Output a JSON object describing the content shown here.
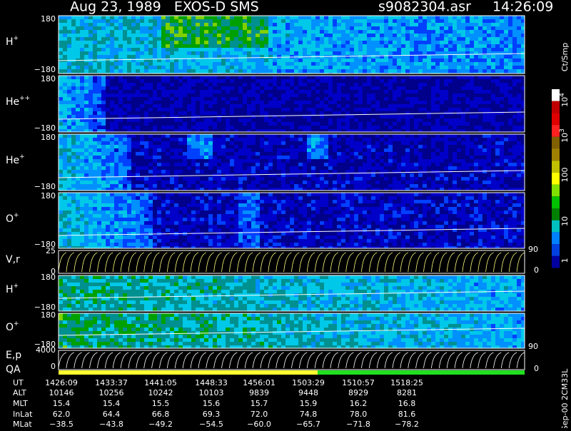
{
  "header": {
    "title": "Aug 23, 1989   EXOS-D SMS",
    "file": "s9082304.asr",
    "time": "14:26:09"
  },
  "panels": [
    {
      "label": "H",
      "sup": "+",
      "top": "180",
      "bottom": "−180"
    },
    {
      "label": "He",
      "sup": "++",
      "top": "180",
      "bottom": "−180"
    },
    {
      "label": "He",
      "sup": "+",
      "top": "180",
      "bottom": "−180"
    },
    {
      "label": "O",
      "sup": "+",
      "top": "180",
      "bottom": "−180"
    }
  ],
  "v_panel": {
    "label": "V,r",
    "top": "25",
    "bottom": "0",
    "right_top": "90",
    "right_bottom": "0"
  },
  "lower_panels": [
    {
      "label": "H",
      "sup": "+",
      "top": "180",
      "bottom": "−180"
    },
    {
      "label": "O",
      "sup": "+",
      "top": "180",
      "bottom": "−180"
    }
  ],
  "ep_panel": {
    "label": "E,p",
    "label2": "QA",
    "top": "4000",
    "bottom": "0",
    "right_top": "90",
    "right_bottom": "0"
  },
  "colorbar": {
    "unit": "Ct/Smp",
    "labels": [
      {
        "base": "10",
        "exp": "4"
      },
      {
        "base": "10",
        "exp": "3"
      },
      {
        "base": "100"
      },
      {
        "base": "10"
      },
      {
        "base": "1"
      }
    ]
  },
  "table": {
    "row_labels": [
      "UT",
      "ALT",
      "MLT",
      "InLat",
      "MLat"
    ],
    "rows": [
      [
        "1426:09",
        "1433:37",
        "1441:05",
        "1448:33",
        "1456:01",
        "1503:29",
        "1510:57",
        "1518:25"
      ],
      [
        "10146",
        "10256",
        "10242",
        "10103",
        "9839",
        "9448",
        "8929",
        "8281"
      ],
      [
        "15.4",
        "15.4",
        "15.5",
        "15.6",
        "15.7",
        "15.9",
        "16.2",
        "16.8"
      ],
      [
        "62.0",
        "64.4",
        "66.8",
        "69.3",
        "72.0",
        "74.8",
        "78.0",
        "81.6"
      ],
      [
        "−38.5",
        "−43.8",
        "−49.2",
        "−54.5",
        "−60.0",
        "−65.7",
        "−71.8",
        "−78.2"
      ]
    ]
  },
  "footer": "Sep-00 2CM33L"
}
